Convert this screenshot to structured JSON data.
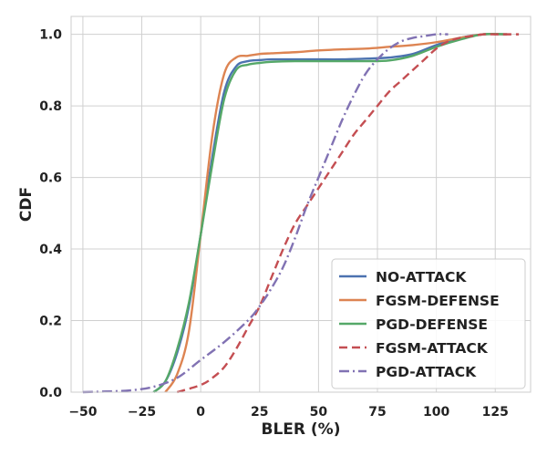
{
  "chart_data": {
    "type": "line",
    "xlabel": "BLER (%)",
    "ylabel": "CDF",
    "xlim": [
      -55,
      140
    ],
    "ylim": [
      0.0,
      1.05
    ],
    "x_ticks": [
      -50,
      -25,
      0,
      25,
      50,
      75,
      100,
      125
    ],
    "x_tick_labels": [
      "−50",
      "−25",
      "0",
      "25",
      "50",
      "75",
      "100",
      "125"
    ],
    "y_ticks": [
      0.0,
      0.2,
      0.4,
      0.6,
      0.8,
      1.0
    ],
    "y_tick_labels": [
      "0.0",
      "0.2",
      "0.4",
      "0.6",
      "0.8",
      "1.0"
    ],
    "grid": true,
    "legend_position": "bottom-right",
    "series": [
      {
        "name": "NO-ATTACK",
        "color": "#4c72b0",
        "dash": "solid",
        "x": [
          -20,
          -15,
          -10,
          -5,
          0,
          5,
          10,
          15,
          20,
          25,
          30,
          40,
          50,
          60,
          70,
          80,
          90,
          100,
          110,
          120,
          130
        ],
        "y": [
          0.0,
          0.03,
          0.11,
          0.24,
          0.44,
          0.66,
          0.84,
          0.91,
          0.925,
          0.928,
          0.93,
          0.93,
          0.93,
          0.93,
          0.932,
          0.935,
          0.945,
          0.97,
          0.99,
          1.0,
          1.0
        ]
      },
      {
        "name": "FGSM-DEFENSE",
        "color": "#dd8452",
        "dash": "solid",
        "x": [
          -15,
          -10,
          -5,
          0,
          5,
          10,
          15,
          20,
          25,
          30,
          40,
          50,
          60,
          70,
          80,
          90,
          100,
          110,
          120,
          130
        ],
        "y": [
          0.0,
          0.05,
          0.17,
          0.44,
          0.72,
          0.89,
          0.935,
          0.94,
          0.945,
          0.947,
          0.95,
          0.955,
          0.958,
          0.96,
          0.965,
          0.97,
          0.978,
          0.99,
          1.0,
          1.0
        ]
      },
      {
        "name": "PGD-DEFENSE",
        "color": "#55a868",
        "dash": "solid",
        "x": [
          -20,
          -15,
          -10,
          -5,
          0,
          5,
          10,
          15,
          20,
          25,
          30,
          40,
          50,
          60,
          70,
          80,
          90,
          100,
          110,
          120,
          130
        ],
        "y": [
          0.0,
          0.03,
          0.12,
          0.25,
          0.44,
          0.64,
          0.82,
          0.9,
          0.915,
          0.92,
          0.923,
          0.925,
          0.925,
          0.925,
          0.925,
          0.927,
          0.94,
          0.965,
          0.985,
          1.0,
          1.0
        ]
      },
      {
        "name": "FGSM-ATTACK",
        "color": "#c44e52",
        "dash": "dashed",
        "x": [
          -10,
          0,
          5,
          10,
          15,
          20,
          25,
          30,
          35,
          40,
          45,
          50,
          55,
          60,
          65,
          70,
          75,
          80,
          85,
          90,
          95,
          100,
          105,
          110,
          115,
          120,
          125,
          135
        ],
        "y": [
          0.0,
          0.02,
          0.04,
          0.07,
          0.12,
          0.18,
          0.24,
          0.32,
          0.4,
          0.47,
          0.52,
          0.57,
          0.62,
          0.67,
          0.72,
          0.76,
          0.8,
          0.84,
          0.87,
          0.9,
          0.93,
          0.96,
          0.98,
          0.99,
          0.995,
          1.0,
          1.0,
          1.0
        ]
      },
      {
        "name": "PGD-ATTACK",
        "color": "#8172b3",
        "dash": "dashdot",
        "x": [
          -50,
          -40,
          -30,
          -20,
          -10,
          0,
          10,
          20,
          25,
          30,
          35,
          40,
          45,
          50,
          55,
          60,
          65,
          70,
          75,
          80,
          85,
          90,
          95,
          100,
          105
        ],
        "y": [
          0.0,
          0.002,
          0.005,
          0.015,
          0.04,
          0.09,
          0.14,
          0.2,
          0.24,
          0.29,
          0.35,
          0.43,
          0.52,
          0.6,
          0.68,
          0.76,
          0.83,
          0.89,
          0.93,
          0.96,
          0.98,
          0.99,
          0.995,
          1.0,
          1.0
        ]
      }
    ]
  }
}
